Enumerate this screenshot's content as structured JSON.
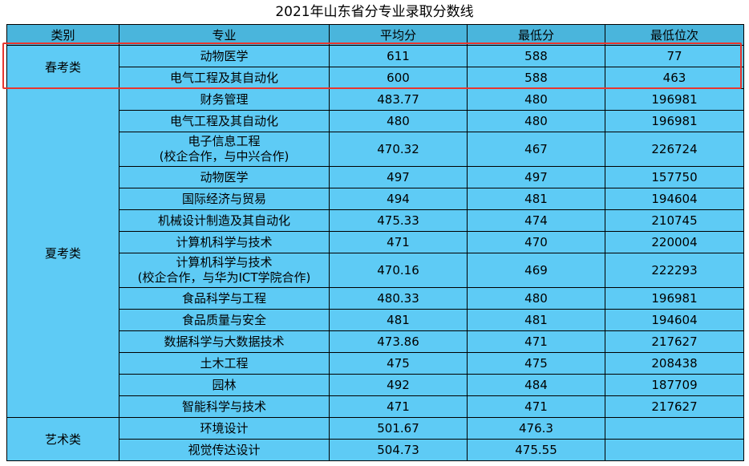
{
  "title": "2021年山东省分专业录取分数线",
  "headers": {
    "category": "类别",
    "major": "专业",
    "avg": "平均分",
    "min": "最低分",
    "rank": "最低位次"
  },
  "groups": [
    {
      "category": "春考类",
      "rows": [
        {
          "major": [
            "动物医学"
          ],
          "avg": "611",
          "min": "588",
          "rank": "77"
        },
        {
          "major": [
            "电气工程及其自动化"
          ],
          "avg": "600",
          "min": "588",
          "rank": "463"
        }
      ]
    },
    {
      "category": "夏考类",
      "rows": [
        {
          "major": [
            "财务管理"
          ],
          "avg": "483.77",
          "min": "480",
          "rank": "196981"
        },
        {
          "major": [
            "电气工程及其自动化"
          ],
          "avg": "480",
          "min": "480",
          "rank": "196981"
        },
        {
          "major": [
            "电子信息工程",
            "(校企合作，与中兴合作)"
          ],
          "avg": "470.32",
          "min": "467",
          "rank": "226724"
        },
        {
          "major": [
            "动物医学"
          ],
          "avg": "497",
          "min": "497",
          "rank": "157750"
        },
        {
          "major": [
            "国际经济与贸易"
          ],
          "avg": "494",
          "min": "481",
          "rank": "194604"
        },
        {
          "major": [
            "机械设计制造及其自动化"
          ],
          "avg": "475.33",
          "min": "474",
          "rank": "210745"
        },
        {
          "major": [
            "计算机科学与技术"
          ],
          "avg": "471",
          "min": "470",
          "rank": "220004"
        },
        {
          "major": [
            "计算机科学与技术",
            "(校企合作，与华为ICT学院合作)"
          ],
          "avg": "470.16",
          "min": "469",
          "rank": "222293"
        },
        {
          "major": [
            "食品科学与工程"
          ],
          "avg": "480.33",
          "min": "480",
          "rank": "196981"
        },
        {
          "major": [
            "食品质量与安全"
          ],
          "avg": "481",
          "min": "481",
          "rank": "194604"
        },
        {
          "major": [
            "数据科学与大数据技术"
          ],
          "avg": "473.86",
          "min": "471",
          "rank": "217627"
        },
        {
          "major": [
            "土木工程"
          ],
          "avg": "475",
          "min": "475",
          "rank": "208438"
        },
        {
          "major": [
            "园林"
          ],
          "avg": "492",
          "min": "484",
          "rank": "187709"
        },
        {
          "major": [
            "智能科学与技术"
          ],
          "avg": "471",
          "min": "471",
          "rank": "217627"
        }
      ]
    },
    {
      "category": "艺术类",
      "rows": [
        {
          "major": [
            "环境设计"
          ],
          "avg": "501.67",
          "min": "476.3",
          "rank": ""
        },
        {
          "major": [
            "视觉传达设计"
          ],
          "avg": "504.73",
          "min": "475.55",
          "rank": ""
        }
      ]
    }
  ]
}
